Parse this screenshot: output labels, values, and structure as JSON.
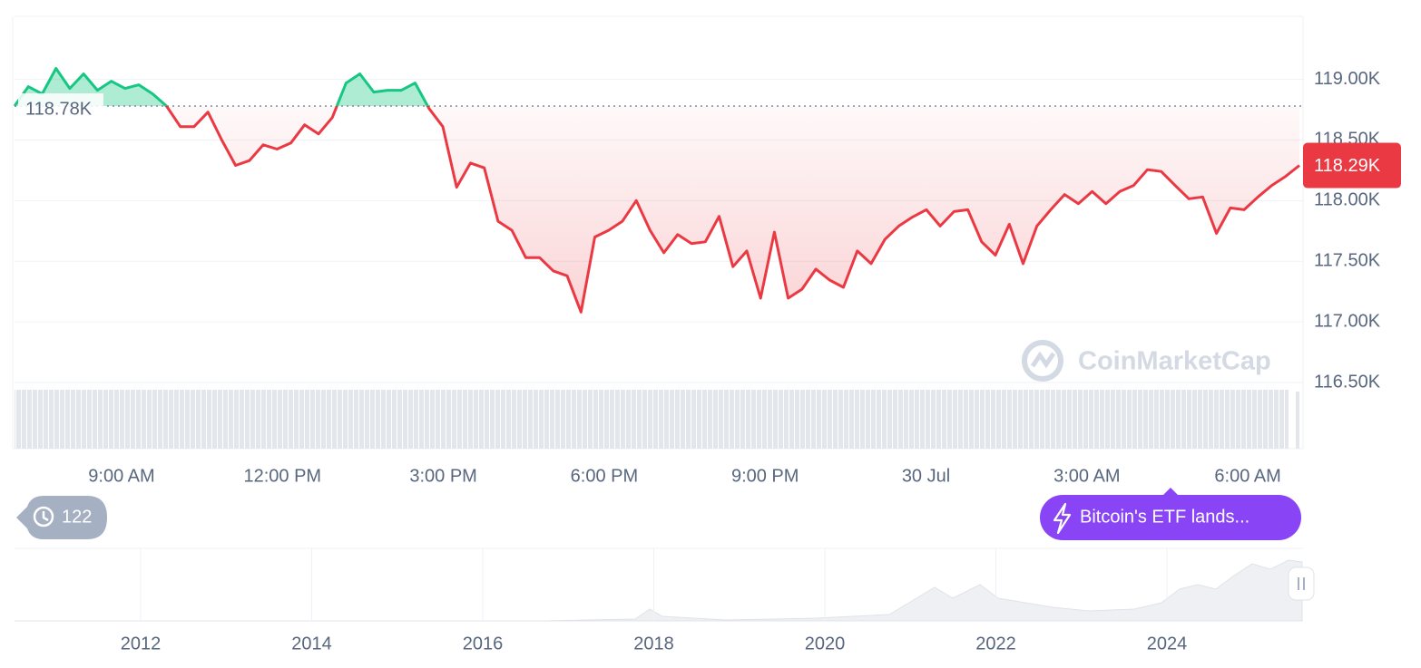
{
  "chart_data": {
    "type": "line",
    "values": [
      118780,
      118940,
      118880,
      119090,
      118925,
      119045,
      118910,
      118985,
      118925,
      118955,
      118880,
      118780,
      118610,
      118610,
      118730,
      118500,
      118290,
      118330,
      118460,
      118425,
      118475,
      118625,
      118550,
      118685,
      118970,
      119045,
      118895,
      118910,
      118910,
      118970,
      118760,
      118610,
      118110,
      118310,
      118270,
      117830,
      117755,
      117530,
      117530,
      117420,
      117380,
      117080,
      117700,
      117755,
      117830,
      118000,
      117755,
      117570,
      117720,
      117645,
      117660,
      117870,
      117455,
      117585,
      117195,
      117740,
      117195,
      117270,
      117435,
      117345,
      117285,
      117585,
      117480,
      117680,
      117790,
      117865,
      117925,
      117790,
      117910,
      117925,
      117660,
      117550,
      117805,
      117480,
      117790,
      117925,
      118050,
      117975,
      118075,
      117975,
      118075,
      118125,
      118255,
      118240,
      118125,
      118015,
      118030,
      117730,
      117940,
      117925,
      118030,
      118125,
      118200,
      118290
    ],
    "up_color": "#16c784",
    "down_color": "#ea3943",
    "baseline": {
      "value": 118780,
      "label": "118.78K"
    },
    "last_price": {
      "value": 118290,
      "label": "118.29K"
    },
    "ylim": [
      116500,
      119520
    ],
    "yticks": [
      {
        "value": 116500,
        "label": "116.50K"
      },
      {
        "value": 117000,
        "label": "117.00K"
      },
      {
        "value": 117500,
        "label": "117.50K"
      },
      {
        "value": 118000,
        "label": "118.00K"
      },
      {
        "value": 118500,
        "label": "118.50K"
      },
      {
        "value": 119000,
        "label": "119.00K"
      }
    ],
    "xticks": [
      "9:00 AM",
      "12:00 PM",
      "3:00 PM",
      "6:00 PM",
      "9:00 PM",
      "30 Jul",
      "3:00 AM",
      "6:00 AM"
    ],
    "grid": true,
    "watermark": "CoinMarketCap",
    "history_count": 122,
    "news": "Bitcoin's ETF lands...",
    "navigator_xticks": [
      2012,
      2014,
      2016,
      2018,
      2020,
      2022,
      2024
    ]
  }
}
